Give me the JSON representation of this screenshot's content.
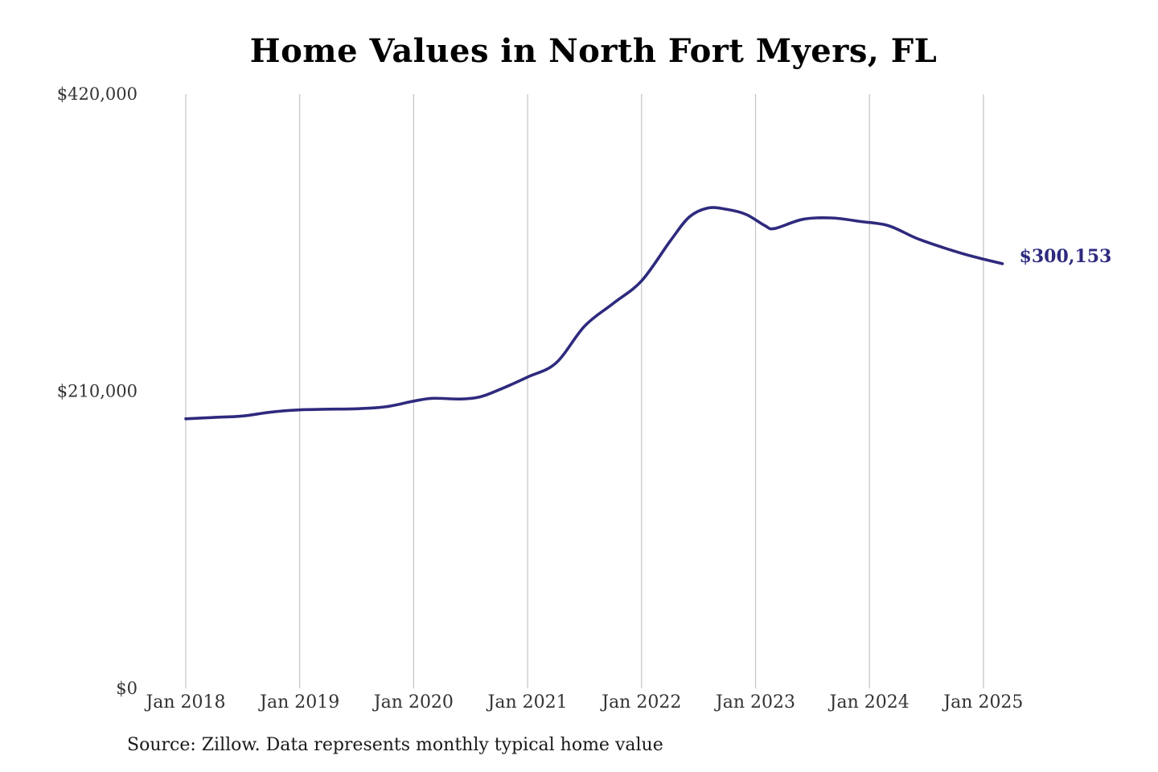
{
  "chart_data": {
    "type": "line",
    "title": "Home Values in North Fort Myers, FL",
    "source": "Source: Zillow. Data represents monthly typical home value",
    "xlabel": "",
    "ylabel": "",
    "ylim": [
      0,
      420000
    ],
    "xlim": [
      "2018-01",
      "2025-03"
    ],
    "grid": {
      "vertical": true,
      "horizontal": false
    },
    "yticks": [
      {
        "value": 0,
        "label": "$0"
      },
      {
        "value": 210000,
        "label": "$210,000"
      },
      {
        "value": 420000,
        "label": "$420,000"
      }
    ],
    "xticks": [
      {
        "date": "2018-01",
        "label": "Jan 2018"
      },
      {
        "date": "2019-01",
        "label": "Jan 2019"
      },
      {
        "date": "2020-01",
        "label": "Jan 2020"
      },
      {
        "date": "2021-01",
        "label": "Jan 2021"
      },
      {
        "date": "2022-01",
        "label": "Jan 2022"
      },
      {
        "date": "2023-01",
        "label": "Jan 2023"
      },
      {
        "date": "2024-01",
        "label": "Jan 2024"
      },
      {
        "date": "2025-01",
        "label": "Jan 2025"
      }
    ],
    "series": [
      {
        "color": "#2e2a7e",
        "points": [
          {
            "x": "2018-01",
            "y": 190500
          },
          {
            "x": "2018-04",
            "y": 191500
          },
          {
            "x": "2018-07",
            "y": 192500
          },
          {
            "x": "2018-10",
            "y": 195300
          },
          {
            "x": "2019-01",
            "y": 196800
          },
          {
            "x": "2019-04",
            "y": 197300
          },
          {
            "x": "2019-07",
            "y": 197600
          },
          {
            "x": "2019-10",
            "y": 199000
          },
          {
            "x": "2020-01",
            "y": 203000
          },
          {
            "x": "2020-03",
            "y": 205000
          },
          {
            "x": "2020-06",
            "y": 204500
          },
          {
            "x": "2020-08",
            "y": 206000
          },
          {
            "x": "2020-10",
            "y": 211000
          },
          {
            "x": "2021-01",
            "y": 220000
          },
          {
            "x": "2021-04",
            "y": 230000
          },
          {
            "x": "2021-07",
            "y": 256000
          },
          {
            "x": "2021-10",
            "y": 272000
          },
          {
            "x": "2022-01",
            "y": 288000
          },
          {
            "x": "2022-04",
            "y": 316000
          },
          {
            "x": "2022-06",
            "y": 333000
          },
          {
            "x": "2022-08",
            "y": 339500
          },
          {
            "x": "2022-10",
            "y": 338500
          },
          {
            "x": "2022-12",
            "y": 335000
          },
          {
            "x": "2023-02",
            "y": 327000
          },
          {
            "x": "2023-03",
            "y": 325000
          },
          {
            "x": "2023-06",
            "y": 331500
          },
          {
            "x": "2023-09",
            "y": 332500
          },
          {
            "x": "2023-12",
            "y": 330000
          },
          {
            "x": "2024-03",
            "y": 327000
          },
          {
            "x": "2024-06",
            "y": 318000
          },
          {
            "x": "2024-09",
            "y": 311000
          },
          {
            "x": "2024-12",
            "y": 305000
          },
          {
            "x": "2025-03",
            "y": 300153
          }
        ]
      }
    ],
    "end_label": "$300,153"
  }
}
